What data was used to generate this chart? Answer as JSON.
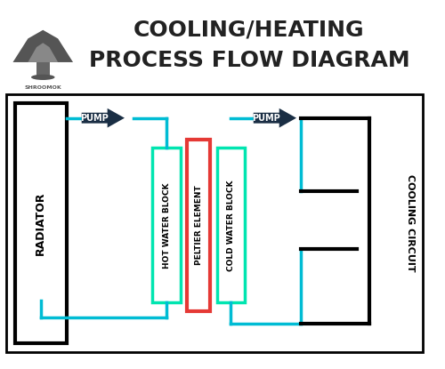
{
  "title_line1": "COOLING/HEATING",
  "title_line2": "PROCESS FLOW DIAGRAM",
  "bg_color": "#ffffff",
  "border_color": "#000000",
  "cyan_color": "#00bcd4",
  "dark_blue": "#1a2e44",
  "red_color": "#e53935",
  "green_color": "#00e5b0",
  "radiator_label": "RADIATOR",
  "peltier_label": "PELTIER ELEMENT",
  "hot_block_label": "HOT WATER BLOCK",
  "cold_block_label": "COLD WATER BLOCK",
  "cooling_circuit_label": "COOLING CIRCUIT",
  "pump_label": "PUMP",
  "shroomok_label": "SHROOMOK",
  "title_fontsize": 18,
  "label_fontsize": 8
}
